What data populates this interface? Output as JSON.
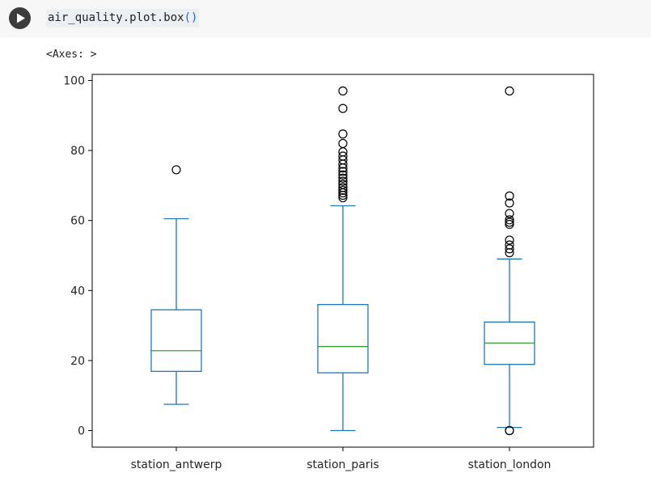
{
  "cell": {
    "code": "air_quality.plot.box",
    "code_parens": "()",
    "run_icon": "play-icon",
    "output_repr": "<Axes: >"
  },
  "colors": {
    "box": "#1f77b4",
    "median": "#2ca02c",
    "flier": "#000000",
    "run_button": "#3c3c3c",
    "code_bg": "#eceff4"
  },
  "chart_data": {
    "type": "box",
    "title": "",
    "xlabel": "",
    "ylabel": "",
    "ylim": [
      -5,
      101.5
    ],
    "yticks": [
      0,
      20,
      40,
      60,
      80,
      100
    ],
    "ytick_labels": [
      "0",
      "20",
      "40",
      "60",
      "80",
      "100"
    ],
    "grid": false,
    "categories": [
      "station_antwerp",
      "station_paris",
      "station_london"
    ],
    "series": [
      {
        "category": "station_antwerp",
        "whisker_low": 7.5,
        "q1": 16.9,
        "median": 22.8,
        "q3": 34.5,
        "whisker_high": 60.5,
        "fliers": [
          74.5
        ]
      },
      {
        "category": "station_paris",
        "whisker_low": 0,
        "q1": 16.5,
        "median": 24.0,
        "q3": 36.0,
        "whisker_high": 64.2,
        "fliers": [
          66.5,
          67.2,
          67.9,
          68.6,
          69.4,
          70.3,
          71.2,
          72.1,
          73.0,
          74.0,
          75.0,
          76.1,
          77.3,
          78.4,
          79.6,
          82.0,
          84.7,
          92.0,
          97.0
        ]
      },
      {
        "category": "station_london",
        "whisker_low": 0.9,
        "q1": 18.9,
        "median": 25.0,
        "q3": 31.0,
        "whisker_high": 49.0,
        "fliers": [
          0,
          0,
          50.8,
          51.9,
          53.0,
          54.4,
          58.9,
          59.5,
          60.2,
          62.0,
          65.0,
          67.0,
          97.0
        ]
      }
    ]
  }
}
